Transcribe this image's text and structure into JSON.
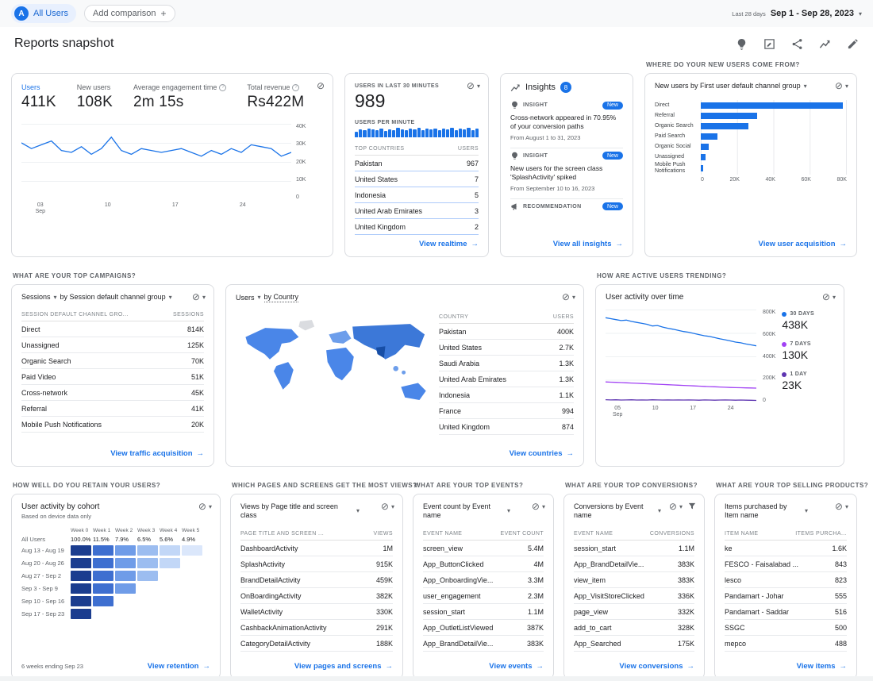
{
  "icons": {
    "no_comparison": "⊘",
    "chevron_down": "▾",
    "arrow_right": "→",
    "plus": "+",
    "help": "?"
  },
  "topbar": {
    "all_users": "All Users",
    "avatar": "A",
    "add_comparison": "Add comparison",
    "date_label": "Last 28 days",
    "date_range": "Sep 1 - Sep 28, 2023"
  },
  "header": {
    "title": "Reports snapshot"
  },
  "colors": {
    "accent": "#1a73e8"
  },
  "overview": {
    "metrics": [
      {
        "label": "Users",
        "value": "411K"
      },
      {
        "label": "New users",
        "value": "108K"
      },
      {
        "label": "Average engagement time",
        "value": "2m 15s"
      },
      {
        "label": "Total revenue",
        "value": "Rs422M"
      }
    ],
    "chart": {
      "type": "line",
      "color": "#1a73e8",
      "ymax": 40,
      "values": [
        30,
        27,
        29,
        31,
        26,
        25,
        28,
        24,
        27,
        33,
        26,
        24,
        27,
        26,
        25,
        26,
        27,
        25,
        23,
        26,
        24,
        27,
        25,
        29,
        28,
        27,
        23,
        25
      ],
      "y_ticks": [
        "40K",
        "30K",
        "20K",
        "10K",
        "0"
      ],
      "x_ticks": [
        {
          "label": "03",
          "sub": "Sep",
          "pos": 0.07
        },
        {
          "label": "10",
          "pos": 0.32
        },
        {
          "label": "17",
          "pos": 0.57
        },
        {
          "label": "24",
          "pos": 0.82
        }
      ]
    }
  },
  "realtime": {
    "title": "USERS IN LAST 30 MINUTES",
    "value": "989",
    "per_minute": "USERS PER MINUTE",
    "chart": {
      "type": "bar",
      "color": "#1a73e8",
      "values": [
        40,
        55,
        48,
        60,
        52,
        46,
        58,
        44,
        56,
        50,
        62,
        54,
        47,
        59,
        51,
        63,
        49,
        57,
        53,
        61,
        46,
        58,
        52,
        64,
        50,
        60,
        55,
        62,
        48,
        58
      ]
    },
    "table": {
      "col1": "TOP COUNTRIES",
      "col2": "USERS",
      "rows": [
        [
          "Pakistan",
          "967"
        ],
        [
          "United States",
          "7"
        ],
        [
          "Indonesia",
          "5"
        ],
        [
          "United Arab Emirates",
          "3"
        ],
        [
          "United Kingdom",
          "2"
        ]
      ]
    },
    "link": "View realtime"
  },
  "insights": {
    "title": "Insights",
    "badge": "8",
    "items": [
      {
        "type": "INSIGHT",
        "badge": "New",
        "text": "Cross-network appeared in 70.95% of your conversion paths",
        "sub": "From August 1 to 31, 2023"
      },
      {
        "type": "INSIGHT",
        "badge": "New",
        "text": "New users for the screen class 'SplashActivity' spiked",
        "sub": "From September 10 to 16, 2023"
      },
      {
        "type": "RECOMMENDATION",
        "badge": "New",
        "text": "",
        "sub": ""
      }
    ],
    "link": "View all insights"
  },
  "acquisition": {
    "section_title": "WHERE DO YOUR NEW USERS COME FROM?",
    "control": "New users by First user default channel group",
    "chart": {
      "type": "bar-h",
      "color": "#1a73e8",
      "xmax": 80000,
      "categories": [
        "Direct",
        "Referral",
        "Organic Search",
        "Paid Search",
        "Organic Social",
        "Unassigned",
        "Mobile Push Notifications"
      ],
      "values": [
        78000,
        31000,
        26000,
        9000,
        4500,
        2500,
        1500
      ],
      "x_ticks": [
        "0",
        "20K",
        "40K",
        "60K",
        "80K"
      ]
    },
    "link": "View user acquisition"
  },
  "campaigns": {
    "section_title": "WHAT ARE YOUR TOP CAMPAIGNS?",
    "metric": "Sessions",
    "dimension": "by Session default channel group",
    "table": {
      "col1": "SESSION DEFAULT CHANNEL GRO...",
      "col2": "SESSIONS",
      "rows": [
        [
          "Direct",
          "814K"
        ],
        [
          "Unassigned",
          "125K"
        ],
        [
          "Organic Search",
          "70K"
        ],
        [
          "Paid Video",
          "51K"
        ],
        [
          "Cross-network",
          "45K"
        ],
        [
          "Referral",
          "41K"
        ],
        [
          "Mobile Push Notifications",
          "20K"
        ]
      ]
    },
    "link": "View traffic acquisition"
  },
  "map": {
    "metric": "Users",
    "dimension": "by Country",
    "table": {
      "col1": "COUNTRY",
      "col2": "USERS",
      "rows": [
        [
          "Pakistan",
          "400K"
        ],
        [
          "United States",
          "2.7K"
        ],
        [
          "Saudi Arabia",
          "1.3K"
        ],
        [
          "United Arab Emirates",
          "1.3K"
        ],
        [
          "Indonesia",
          "1.1K"
        ],
        [
          "France",
          "994"
        ],
        [
          "United Kingdom",
          "874"
        ]
      ]
    },
    "link": "View countries"
  },
  "active_users": {
    "section_title": "HOW ARE ACTIVE USERS TRENDING?",
    "title": "User activity over time",
    "chart": {
      "type": "line",
      "ymax": 800,
      "series": [
        {
          "name": "30 DAYS",
          "value": "438K",
          "color": "#1a73e8",
          "values": [
            730,
            722,
            714,
            706,
            710,
            698,
            690,
            682,
            674,
            660,
            664,
            650,
            640,
            632,
            622,
            612,
            606,
            596,
            586,
            576,
            570,
            560,
            550,
            542,
            532,
            522,
            516,
            506,
            498,
            490
          ]
        },
        {
          "name": "7 DAYS",
          "value": "130K",
          "color": "#a142f4",
          "values": [
            182,
            180,
            178,
            176,
            174,
            172,
            170,
            168,
            166,
            164,
            162,
            160,
            158,
            156,
            154,
            152,
            150,
            148,
            146,
            144,
            142,
            140,
            138,
            136,
            134,
            133,
            132,
            131,
            130,
            129
          ]
        },
        {
          "name": "1 DAY",
          "value": "23K",
          "color": "#5e35b1",
          "values": [
            30,
            28,
            29,
            27,
            28,
            29,
            27,
            28,
            27,
            29,
            28,
            27,
            28,
            27,
            28,
            27,
            28,
            27,
            26,
            28,
            27,
            26,
            27,
            28,
            27,
            26,
            27,
            26,
            25,
            24
          ]
        }
      ],
      "y_ticks": [
        "800K",
        "600K",
        "400K",
        "200K",
        "0"
      ],
      "x_ticks": [
        {
          "label": "05",
          "sub": "Sep",
          "pos": 0.08
        },
        {
          "label": "10",
          "pos": 0.33
        },
        {
          "label": "17",
          "pos": 0.58
        },
        {
          "label": "24",
          "pos": 0.83
        }
      ]
    }
  },
  "retention": {
    "section_title": "HOW WELL DO YOU RETAIN YOUR USERS?",
    "title": "User activity by cohort",
    "subtitle": "Based on device data only",
    "weeks": [
      "Week 0",
      "Week 1",
      "Week 2",
      "Week 3",
      "Week 4",
      "Week 5"
    ],
    "all_users_label": "All Users",
    "all_users_values": [
      "100.0%",
      "11.5%",
      "7.9%",
      "6.5%",
      "5.6%",
      "4.9%"
    ],
    "palette": [
      "#1b3d8f",
      "#3e6fd0",
      "#6f9ce8",
      "#9cbdf0",
      "#c2d7f7",
      "#dbe7fb"
    ],
    "cohorts": [
      {
        "label": "Aug 13 - Aug 19",
        "weeks": 6
      },
      {
        "label": "Aug 20 - Aug 26",
        "weeks": 5
      },
      {
        "label": "Aug 27 - Sep 2",
        "weeks": 4
      },
      {
        "label": "Sep 3 - Sep 9",
        "weeks": 3
      },
      {
        "label": "Sep 10 - Sep 16",
        "weeks": 2
      },
      {
        "label": "Sep 17 - Sep 23",
        "weeks": 1
      }
    ],
    "footer": "6 weeks ending Sep 23",
    "link": "View retention"
  },
  "pages": {
    "section_title": "WHICH PAGES AND SCREENS GET THE MOST VIEWS?",
    "title": "Views by Page title and screen class",
    "table": {
      "col1": "PAGE TITLE AND SCREEN ...",
      "col2": "VIEWS",
      "rows": [
        [
          "DashboardActivity",
          "1M"
        ],
        [
          "SplashActivity",
          "915K"
        ],
        [
          "BrandDetailActivity",
          "459K"
        ],
        [
          "OnBoardingActivity",
          "382K"
        ],
        [
          "WalletActivity",
          "330K"
        ],
        [
          "CashbackAnimationActivity",
          "291K"
        ],
        [
          "CategoryDetailActivity",
          "188K"
        ]
      ]
    },
    "link": "View pages and screens"
  },
  "events": {
    "section_title": "WHAT ARE YOUR TOP EVENTS?",
    "title": "Event count by Event name",
    "table": {
      "col1": "EVENT NAME",
      "col2": "EVENT COUNT",
      "rows": [
        [
          "screen_view",
          "5.4M"
        ],
        [
          "App_ButtonClicked",
          "4M"
        ],
        [
          "App_OnboardingVie...",
          "3.3M"
        ],
        [
          "user_engagement",
          "2.3M"
        ],
        [
          "session_start",
          "1.1M"
        ],
        [
          "App_OutletListViewed",
          "387K"
        ],
        [
          "App_BrandDetailVie...",
          "383K"
        ]
      ]
    },
    "link": "View events"
  },
  "conversions": {
    "section_title": "WHAT ARE YOUR TOP CONVERSIONS?",
    "title": "Conversions by Event name",
    "table": {
      "col1": "EVENT NAME",
      "col2": "CONVERSIONS",
      "rows": [
        [
          "session_start",
          "1.1M"
        ],
        [
          "App_BrandDetailVie...",
          "383K"
        ],
        [
          "view_item",
          "383K"
        ],
        [
          "App_VisitStoreClicked",
          "336K"
        ],
        [
          "page_view",
          "332K"
        ],
        [
          "add_to_cart",
          "328K"
        ],
        [
          "App_Searched",
          "175K"
        ]
      ]
    },
    "link": "View conversions"
  },
  "items": {
    "section_title": "WHAT ARE YOUR TOP SELLING PRODUCTS?",
    "title": "Items purchased by Item name",
    "table": {
      "col1": "ITEM NAME",
      "col2": "ITEMS PURCHA...",
      "rows": [
        [
          "ke",
          "1.6K"
        ],
        [
          "FESCO - Faisalabad ...",
          "843"
        ],
        [
          "lesco",
          "823"
        ],
        [
          "Pandamart - Johar",
          "555"
        ],
        [
          "Pandamart - Saddar",
          "516"
        ],
        [
          "SSGC",
          "500"
        ],
        [
          "mepco",
          "488"
        ]
      ]
    },
    "link": "View items"
  }
}
